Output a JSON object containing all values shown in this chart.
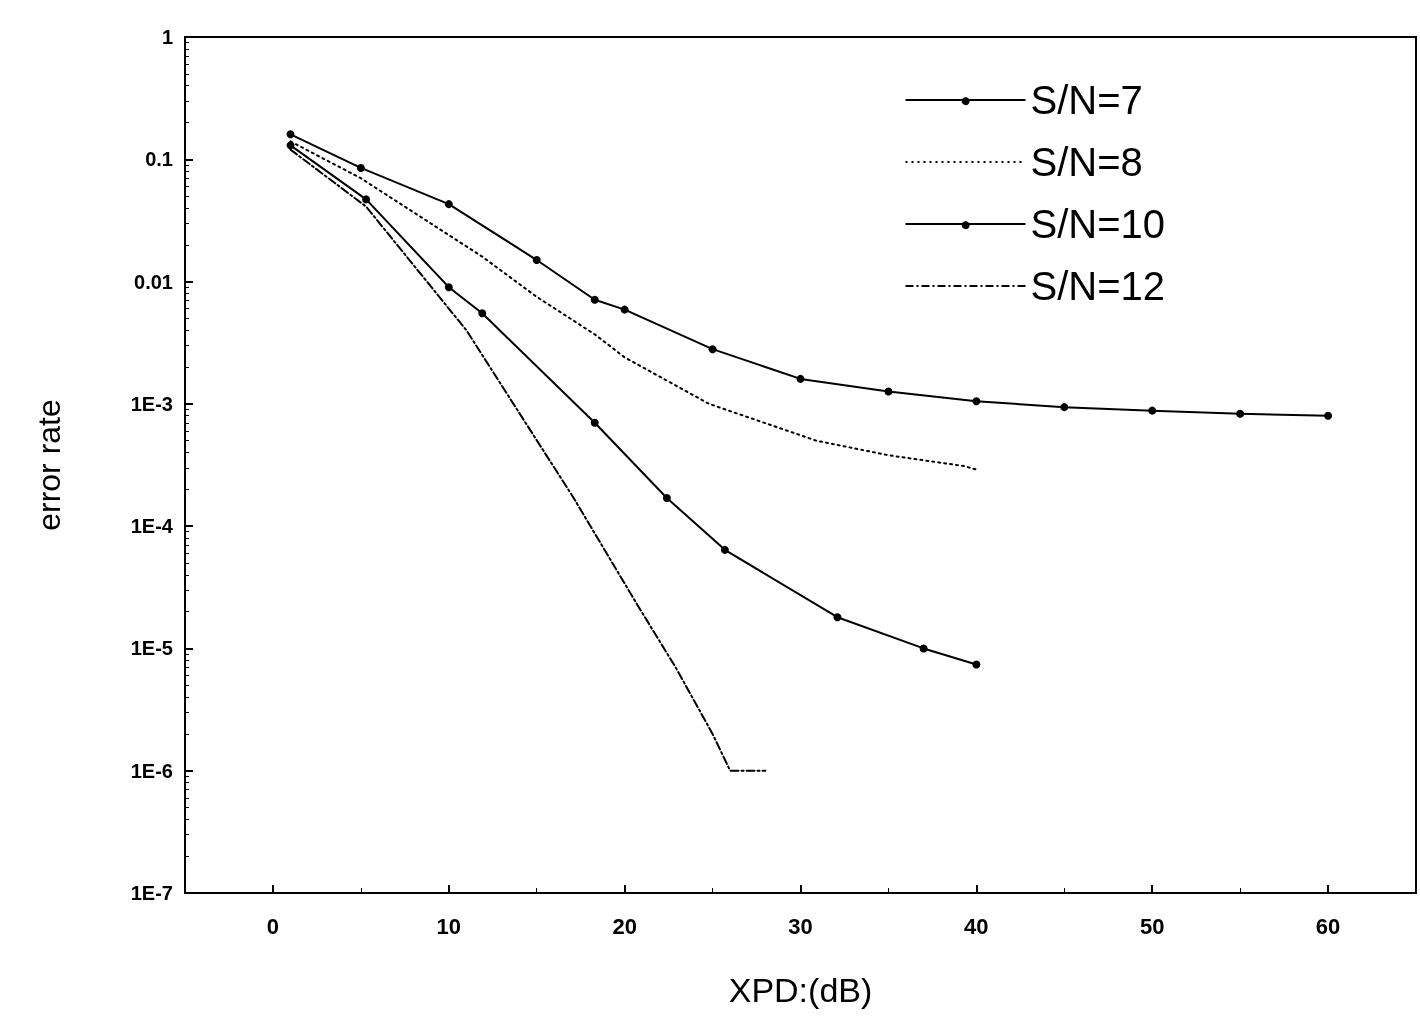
{
  "chart_data": {
    "type": "line",
    "xlabel": "XPD:(dB)",
    "ylabel": "error rate",
    "log": "y",
    "grid": false,
    "legend": "top right",
    "xlim": [
      -5,
      65
    ],
    "xticks": [
      0,
      10,
      20,
      30,
      40,
      50,
      60
    ],
    "ylim": [
      1e-07,
      1
    ],
    "yticks": [
      1,
      0.1,
      0.01,
      {
        "value": 0.001,
        "label": "1E-3"
      },
      {
        "value": 0.0001,
        "label": "1E-4"
      },
      {
        "value": 1e-05,
        "label": "1E-5"
      },
      {
        "value": 1e-06,
        "label": "1E-6"
      },
      {
        "value": 1e-07,
        "label": "1E-7"
      }
    ],
    "series": [
      {
        "name": "S/N=7",
        "color": "#000000",
        "line_style": "solid",
        "marker": "circle",
        "x": [
          1,
          5,
          10,
          15,
          18.3,
          20,
          25,
          30,
          35,
          40,
          45,
          50,
          55,
          60
        ],
        "values": [
          0.16,
          0.085,
          0.043,
          0.015,
          0.0071,
          0.0059,
          0.0028,
          0.0016,
          0.00126,
          0.00105,
          0.00094,
          0.00088,
          0.00083,
          0.0008
        ]
      },
      {
        "name": "S/N=8",
        "color": "#000000",
        "line_style": "dotted",
        "marker": "none",
        "x": [
          1,
          5,
          11.9,
          15,
          18.3,
          20,
          24.8,
          30.9,
          35,
          39.3,
          40
        ],
        "values": [
          0.14,
          0.07,
          0.016,
          0.0075,
          0.0037,
          0.0024,
          0.001,
          0.0005,
          0.00038,
          0.00031,
          0.00029
        ]
      },
      {
        "name": "S/N=10",
        "color": "#000000",
        "line_style": "solid",
        "marker": "circle",
        "x": [
          1,
          5.3,
          10,
          11.9,
          18.3,
          22.4,
          25.7,
          32.1,
          37,
          40
        ],
        "values": [
          0.13,
          0.047,
          0.009,
          0.0055,
          0.0007,
          0.00017,
          6.4e-05,
          1.8e-05,
          1e-05,
          7.4e-06
        ]
      },
      {
        "name": "S/N=12",
        "color": "#000000",
        "line_style": "dashed",
        "marker": "none",
        "x": [
          1,
          5.3,
          11,
          17.1,
          20.7,
          22.9,
          25,
          26,
          28
        ],
        "values": [
          0.12,
          0.041,
          0.004,
          0.00017,
          2.3e-05,
          7e-06,
          2e-06,
          1e-06,
          1e-06
        ]
      }
    ]
  }
}
